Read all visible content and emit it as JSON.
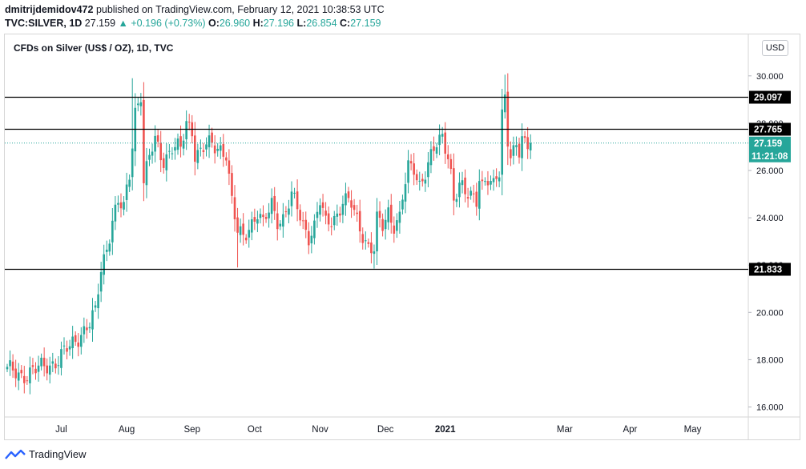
{
  "header": {
    "author": "dmitrijdemidov472",
    "published_text": "published on TradingView.com, February 12, 2021 10:38:53 UTC",
    "symbol": "TVC:SILVER, 1D",
    "last": "27.159",
    "change": "▲ +0.196 (+0.73%)",
    "o_label": "O:",
    "o_val": "26.960",
    "h_label": "H:",
    "h_val": "27.196",
    "l_label": "L:",
    "l_val": "26.854",
    "c_label": "C:",
    "c_val": "27.159"
  },
  "currency_button": "USD",
  "footer": {
    "brand": "TradingView"
  },
  "colors": {
    "up": "#26a69a",
    "down": "#ef5350",
    "line": "#000000",
    "price_line": "#26a69a"
  },
  "chart_data": {
    "type": "candlestick",
    "title": "CFDs on Silver (US$ / OZ), 1D, TVC",
    "ylim": [
      15.6,
      31.5
    ],
    "y_ticks": [
      "30.000",
      "28.000",
      "26.000",
      "24.000",
      "22.000",
      "20.000",
      "18.000",
      "16.000"
    ],
    "y_tick_values": [
      30,
      28,
      26,
      24,
      22,
      20,
      18,
      16
    ],
    "x_ticks": [
      {
        "label": "Jul",
        "index": 19
      },
      {
        "label": "Aug",
        "index": 42
      },
      {
        "label": "Sep",
        "index": 65
      },
      {
        "label": "Oct",
        "index": 87
      },
      {
        "label": "Nov",
        "index": 110
      },
      {
        "label": "Dec",
        "index": 133
      },
      {
        "label": "2021",
        "index": 154
      },
      {
        "label": "Mar",
        "index": 196
      },
      {
        "label": "Apr",
        "index": 219
      },
      {
        "label": "May",
        "index": 241
      }
    ],
    "horizontal_lines": [
      {
        "value": 29.097,
        "label": "29.097"
      },
      {
        "value": 27.765,
        "label": "27.765"
      },
      {
        "value": 21.833,
        "label": "21.833"
      }
    ],
    "last_price": {
      "value": 27.159,
      "label": "27.159",
      "countdown": "11:21:08"
    },
    "anchors": [
      [
        0,
        17.5
      ],
      [
        5,
        17.4
      ],
      [
        10,
        17.5
      ],
      [
        14,
        17.8
      ],
      [
        18,
        18.0
      ],
      [
        22,
        18.5
      ],
      [
        26,
        19.2
      ],
      [
        29,
        19.5
      ],
      [
        31,
        19.9
      ],
      [
        33,
        21.8
      ],
      [
        35,
        22.8
      ],
      [
        37,
        24.0
      ],
      [
        39,
        24.6
      ],
      [
        41,
        24.3
      ],
      [
        43,
        25.8
      ],
      [
        45,
        28.6
      ],
      [
        47,
        29.3
      ],
      [
        48,
        25.5
      ],
      [
        50,
        26.5
      ],
      [
        52,
        27.2
      ],
      [
        55,
        26.5
      ],
      [
        58,
        27.0
      ],
      [
        61,
        26.8
      ],
      [
        63,
        28.0
      ],
      [
        65,
        27.8
      ],
      [
        66,
        26.8
      ],
      [
        68,
        26.8
      ],
      [
        70,
        27.0
      ],
      [
        73,
        27.0
      ],
      [
        75,
        27.0
      ],
      [
        77,
        26.8
      ],
      [
        79,
        24.6
      ],
      [
        81,
        23.3
      ],
      [
        83,
        23.2
      ],
      [
        85,
        23.7
      ],
      [
        88,
        24.2
      ],
      [
        90,
        23.6
      ],
      [
        93,
        24.6
      ],
      [
        95,
        24.0
      ],
      [
        97,
        24.0
      ],
      [
        100,
        24.8
      ],
      [
        102,
        24.4
      ],
      [
        104,
        23.8
      ],
      [
        106,
        23.3
      ],
      [
        108,
        23.6
      ],
      [
        110,
        24.6
      ],
      [
        112,
        23.7
      ],
      [
        114,
        24.0
      ],
      [
        116,
        24.2
      ],
      [
        118,
        24.7
      ],
      [
        121,
        24.5
      ],
      [
        123,
        23.9
      ],
      [
        125,
        23.4
      ],
      [
        127,
        22.8
      ],
      [
        129,
        22.6
      ],
      [
        130,
        23.8
      ],
      [
        132,
        23.6
      ],
      [
        134,
        24.3
      ],
      [
        136,
        23.8
      ],
      [
        138,
        24.0
      ],
      [
        139,
        24.8
      ],
      [
        141,
        26.0
      ],
      [
        143,
        26.1
      ],
      [
        145,
        25.5
      ],
      [
        147,
        26.0
      ],
      [
        149,
        26.5
      ],
      [
        151,
        27.0
      ],
      [
        153,
        27.4
      ],
      [
        155,
        26.8
      ],
      [
        156,
        26.0
      ],
      [
        157,
        24.8
      ],
      [
        159,
        25.3
      ],
      [
        161,
        24.9
      ],
      [
        163,
        25.0
      ],
      [
        165,
        24.9
      ],
      [
        166,
        25.9
      ],
      [
        167,
        25.4
      ],
      [
        169,
        25.5
      ],
      [
        171,
        25.2
      ],
      [
        173,
        26.0
      ],
      [
        174,
        28.6
      ],
      [
        175,
        29.2
      ],
      [
        176,
        27.4
      ],
      [
        177,
        26.8
      ],
      [
        178,
        26.8
      ],
      [
        179,
        26.8
      ],
      [
        180,
        26.6
      ],
      [
        181,
        27.3
      ],
      [
        182,
        27.0
      ],
      [
        183,
        26.96
      ],
      [
        184,
        27.159
      ]
    ]
  }
}
